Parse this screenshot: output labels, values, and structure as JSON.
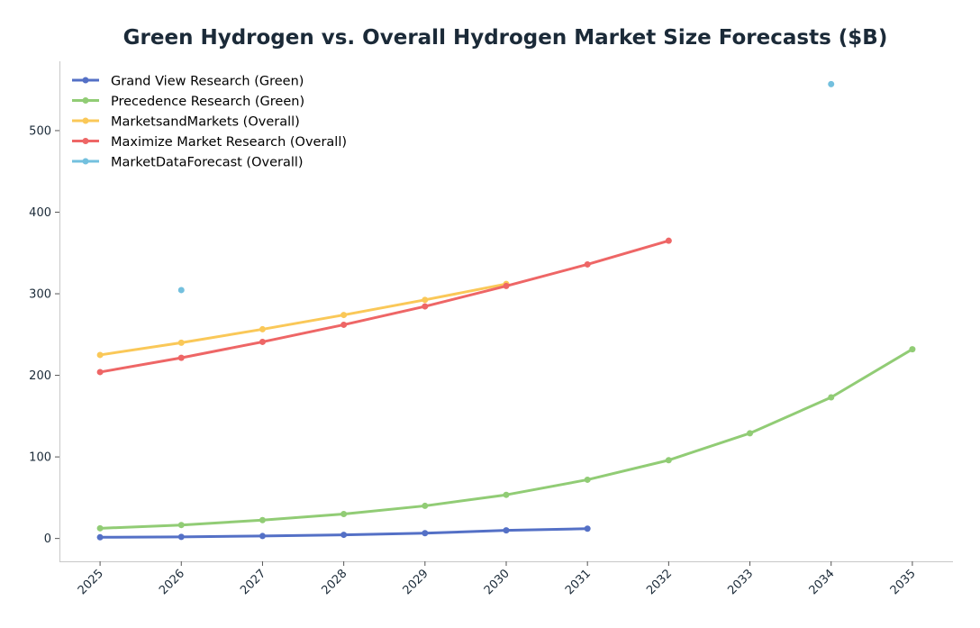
{
  "chart_data": {
    "type": "line",
    "title": "Green Hydrogen vs. Overall Hydrogen Market Size Forecasts ($B)",
    "xlabel": "",
    "ylabel": "",
    "x": [
      2025,
      2026,
      2027,
      2028,
      2029,
      2030,
      2031,
      2032,
      2033,
      2034,
      2035
    ],
    "x_tick_labels": [
      "2025",
      "2026",
      "2027",
      "2028",
      "2029",
      "2030",
      "2031",
      "2032",
      "2033",
      "2034",
      "2035"
    ],
    "xlim": [
      2024.5,
      2035.5
    ],
    "ylim": [
      -28,
      585
    ],
    "y_ticks": [
      0,
      100,
      200,
      300,
      400,
      500
    ],
    "y_tick_labels": [
      "0",
      "100",
      "200",
      "300",
      "400",
      "500"
    ],
    "grid": false,
    "legend_position": "top-left",
    "series": [
      {
        "name": "Grand View Research (Green)",
        "color": "#5470c6",
        "points": [
          [
            2025,
            1.5
          ],
          [
            2026,
            2
          ],
          [
            2027,
            3
          ],
          [
            2028,
            4.5
          ],
          [
            2029,
            6.5
          ],
          [
            2030,
            10
          ],
          [
            2031,
            12
          ]
        ]
      },
      {
        "name": "Precedence Research (Green)",
        "color": "#91cc75",
        "points": [
          [
            2025,
            12.5
          ],
          [
            2026,
            16.5
          ],
          [
            2027,
            22.5
          ],
          [
            2028,
            30
          ],
          [
            2029,
            40
          ],
          [
            2030,
            53.5
          ],
          [
            2031,
            72
          ],
          [
            2032,
            96
          ],
          [
            2033,
            129
          ],
          [
            2034,
            173
          ],
          [
            2035,
            232
          ]
        ]
      },
      {
        "name": "MarketsandMarkets (Overall)",
        "color": "#fac858",
        "points": [
          [
            2025,
            225
          ],
          [
            2026,
            240
          ],
          [
            2027,
            256.5
          ],
          [
            2028,
            274
          ],
          [
            2029,
            292.5
          ],
          [
            2030,
            312
          ]
        ]
      },
      {
        "name": "Maximize Market Research (Overall)",
        "color": "#ee6666",
        "points": [
          [
            2025,
            204
          ],
          [
            2026,
            221.5
          ],
          [
            2027,
            241
          ],
          [
            2028,
            262
          ],
          [
            2029,
            284.5
          ],
          [
            2030,
            309.5
          ],
          [
            2031,
            336
          ],
          [
            2032,
            365
          ]
        ]
      },
      {
        "name": "MarketDataForecast (Overall)",
        "color": "#73c0de",
        "points": [
          [
            2026,
            304.5
          ],
          [
            2034,
            557
          ]
        ]
      }
    ]
  }
}
